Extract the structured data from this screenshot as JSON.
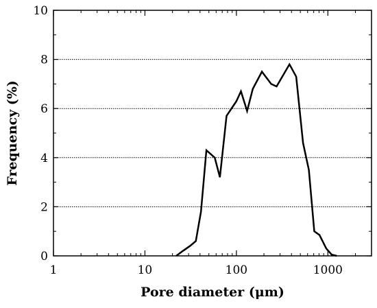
{
  "chart_data": {
    "type": "line",
    "xlabel": "Pore diameter (μm)",
    "ylabel": "Frequency (%)",
    "x_scale": "log",
    "xlim": [
      1,
      3000
    ],
    "ylim": [
      0,
      10
    ],
    "x_ticks": [
      1,
      10,
      100,
      1000
    ],
    "x_tick_labels": [
      "1",
      "10",
      "100",
      "1000"
    ],
    "y_ticks": [
      0,
      2,
      4,
      6,
      8,
      10
    ],
    "y_tick_labels": [
      "0",
      "2",
      "4",
      "6",
      "8",
      "10"
    ],
    "grid": "horizontal dotted",
    "line_color": "#000000",
    "series": [
      {
        "x": [
          22,
          26,
          31,
          36,
          41,
          47,
          58,
          66,
          78,
          100,
          112,
          131,
          151,
          190,
          240,
          275,
          380,
          450,
          535,
          620,
          710,
          810,
          960,
          1100,
          1250
        ],
        "y": [
          0,
          0.2,
          0.4,
          0.6,
          1.8,
          4.3,
          4.0,
          3.2,
          5.7,
          6.3,
          6.7,
          5.9,
          6.8,
          7.5,
          7.0,
          6.9,
          7.8,
          7.3,
          4.6,
          3.5,
          1.0,
          0.85,
          0.3,
          0.05,
          0
        ]
      }
    ]
  }
}
